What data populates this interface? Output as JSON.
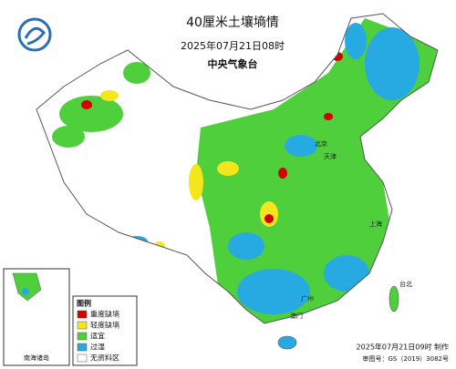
{
  "header": {
    "title": "40厘米土壤墒情",
    "time": "2025年07月21日08时",
    "issuer": "中央气象台"
  },
  "legend": {
    "title": "图例",
    "items": [
      {
        "label": "重度缺墒",
        "color": "#d40000"
      },
      {
        "label": "轻度缺墒",
        "color": "#f5e51b"
      },
      {
        "label": "适宜",
        "color": "#4fcf3c"
      },
      {
        "label": "过湿",
        "color": "#27a9e1"
      },
      {
        "label": "无资料区",
        "color": "#ffffff"
      }
    ]
  },
  "inset": {
    "label": "南海诸岛"
  },
  "places": [
    "北京",
    "天津",
    "上海",
    "广州",
    "澳门",
    "台北"
  ],
  "footer": {
    "made": "2025年07月21日09时 制作",
    "approval": "审图号：GS（2019）3082号"
  }
}
